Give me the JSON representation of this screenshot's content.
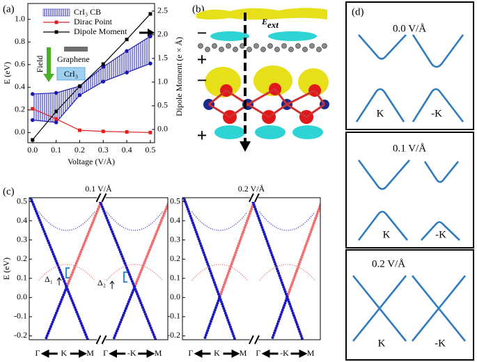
{
  "chart_data": [
    {
      "type": "line",
      "x_label": "Voltage (V/Å)",
      "y_label": "E (eV)",
      "y2_label": "Dipole Moment (e × Å)",
      "x": [
        0,
        0.1,
        0.2,
        0.3,
        0.4,
        0.5
      ],
      "xlim": [
        -0.02,
        0.518
      ],
      "xticks": [
        {
          "value": 0,
          "label": "0.0"
        },
        0.1,
        0.2,
        0.3,
        0.4,
        0.5
      ],
      "ylim": [
        -0.09,
        1.14
      ],
      "yticks": [
        {
          "value": 0,
          "label": "0.0"
        },
        0.2,
        0.4,
        0.6,
        0.8,
        {
          "value": 1,
          "label": "1.0"
        }
      ],
      "y2lim": [
        -0.28,
        2.66
      ],
      "y2ticks": [
        {
          "value": 0,
          "label": "0.0"
        },
        0.5,
        {
          "value": 1,
          "label": "1.0"
        },
        1.5,
        {
          "value": 2,
          "label": "2.0"
        },
        2.5
      ],
      "series": [
        {
          "name": "CrI₃ CB",
          "color": "#1a1ab0",
          "values": [
            0.11,
            0.09,
            0.33,
            0.45,
            0.53,
            0.61
          ],
          "upper": [
            0.34,
            0.35,
            0.41,
            0.58,
            0.72,
            0.85
          ]
        },
        {
          "name": "Dirac Point",
          "color": "#e02020",
          "values": [
            0.21,
            0.12,
            0.02,
            0.01,
            0.005,
            0
          ]
        },
        {
          "name": "Dipole Moment",
          "color": "#000000",
          "axis": "y2",
          "values": [
            -0.22,
            0.38,
            0.91,
            1.38,
            1.9,
            2.44
          ]
        }
      ],
      "annotations": {
        "field": "Field",
        "graphene": "Graphene",
        "cri3": "CrI₃"
      }
    },
    {
      "type": "band-structure",
      "title": "0.1 V/Å",
      "y_label": "E (eV)",
      "ylim": [
        -0.22,
        0.52
      ],
      "yticks": [
        -0.2,
        -0.1,
        {
          "value": 0,
          "label": "0.0"
        },
        0.1,
        0.2,
        0.3,
        0.4,
        0.5
      ],
      "k_labels": [
        "Γ",
        "K",
        "M",
        "Γ",
        "-K",
        "M"
      ],
      "annotations": [
        "Δ₁",
        "Δ₂"
      ]
    },
    {
      "type": "band-structure",
      "title": "0.2 V/Å",
      "ylim": [
        -0.22,
        0.52
      ],
      "yticks": [
        -0.2,
        -0.1,
        {
          "value": 0,
          "label": "0.0"
        },
        0.1,
        0.2,
        0.3,
        0.4,
        0.5
      ],
      "k_labels": [
        "Γ",
        "K",
        "M",
        "Γ",
        "-K",
        "M"
      ]
    }
  ],
  "panel_labels": [
    "(a)",
    "(b)",
    "(c)",
    "(d)"
  ],
  "panel_b": {
    "field_symbol": "E",
    "field_subscript": "ext",
    "signs": [
      "−",
      "+",
      "−",
      "+"
    ]
  },
  "panel_d": {
    "panels": [
      {
        "title": "0.0 V/Å",
        "valleys": [
          "K",
          "-K"
        ]
      },
      {
        "title": "0.1 V/Å",
        "valleys": [
          "K",
          "-K"
        ]
      },
      {
        "title": "0.2 V/Å",
        "valleys": [
          "K",
          "-K"
        ]
      }
    ]
  }
}
